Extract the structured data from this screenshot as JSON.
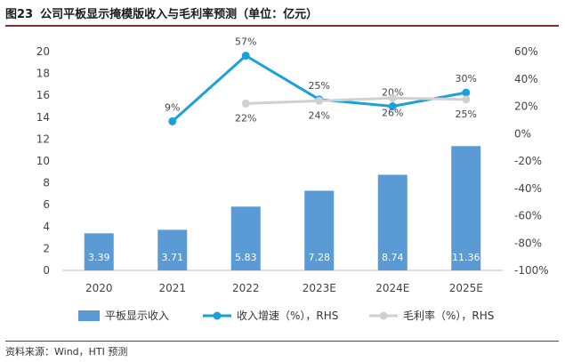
{
  "figure": {
    "number": "图23",
    "title": "公司平板显示掩模版收入与毛利率预测（单位：亿元）"
  },
  "source": "资料来源：Wind，HTI 预测",
  "chart_data": {
    "type": "bar+line",
    "categories": [
      "2020",
      "2021",
      "2022",
      "2023E",
      "2024E",
      "2025E"
    ],
    "left_axis": {
      "ylim": [
        0,
        20
      ],
      "ticks": [
        0,
        2,
        4,
        6,
        8,
        10,
        12,
        14,
        16,
        18,
        20
      ]
    },
    "right_axis": {
      "ylim": [
        -100,
        60
      ],
      "unit": "%",
      "ticks": [
        -100,
        -80,
        -60,
        -40,
        -20,
        0,
        20,
        40,
        60
      ]
    },
    "bar_series": {
      "name": "平板显示收入",
      "axis": "left",
      "color": "#5b9bd5",
      "values": [
        3.39,
        3.71,
        5.83,
        7.28,
        8.74,
        11.36
      ],
      "labels": [
        "3.39",
        "3.71",
        "5.83",
        "7.28",
        "8.74",
        "11.36"
      ]
    },
    "line_series": [
      {
        "name": "收入增速（%），RHS",
        "axis": "right",
        "color": "#1ba1d9",
        "values": [
          null,
          9,
          57,
          25,
          20,
          30
        ],
        "labels": [
          null,
          "9%",
          "57%",
          "25%",
          "20%",
          "30%"
        ],
        "label_position": [
          "",
          "above",
          "above",
          "above",
          "above",
          "above"
        ]
      },
      {
        "name": "毛利率（%），RHS",
        "axis": "right",
        "color": "#d0d0d0",
        "values": [
          null,
          null,
          22,
          24,
          26,
          25
        ],
        "labels": [
          null,
          null,
          "22%",
          "24%",
          "26%",
          "25%"
        ],
        "label_position": [
          "",
          "",
          "below",
          "below",
          "below",
          "below"
        ]
      }
    ],
    "grid": false,
    "legend_position": "bottom"
  }
}
